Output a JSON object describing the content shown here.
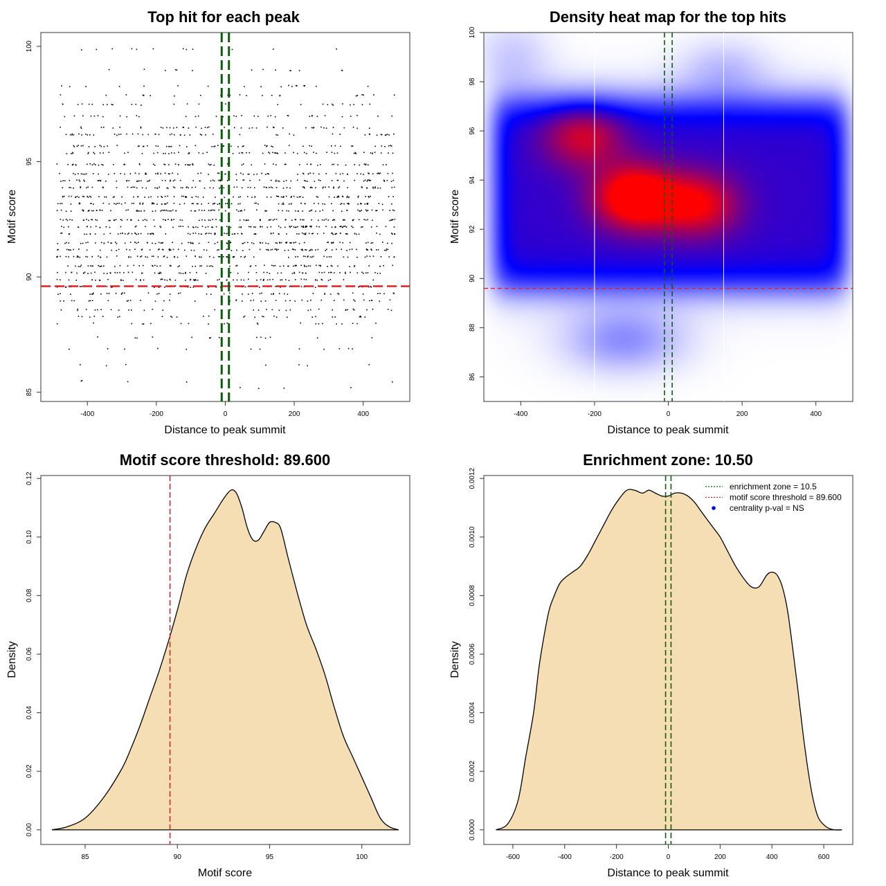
{
  "chart_data": [
    {
      "id": "top-hits",
      "type": "scatter",
      "title": "Top hit for each peak",
      "xlabel": "Distance to peak summit",
      "ylabel": "Motif score",
      "xlim": [
        -535,
        535
      ],
      "ylim": [
        84.6,
        100.6
      ],
      "xticks": [
        -400,
        -200,
        0,
        200,
        400
      ],
      "yticks": [
        85,
        90,
        95,
        100
      ],
      "score_levels": [
        85.2,
        85.5,
        86.2,
        86.9,
        87.4,
        88.0,
        88.3,
        88.6,
        89.0,
        89.3,
        89.6,
        89.9,
        90.2,
        90.5,
        90.9,
        91.2,
        91.5,
        91.9,
        92.2,
        92.5,
        92.9,
        93.2,
        93.5,
        93.9,
        94.2,
        94.5,
        94.9,
        95.4,
        95.7,
        96.2,
        96.5,
        97.0,
        97.5,
        97.9,
        98.3,
        99.0,
        99.9
      ],
      "level_weights": [
        3,
        4,
        6,
        10,
        12,
        18,
        24,
        30,
        36,
        42,
        48,
        56,
        62,
        66,
        70,
        74,
        78,
        80,
        82,
        82,
        80,
        78,
        76,
        72,
        68,
        62,
        58,
        54,
        48,
        44,
        38,
        30,
        24,
        20,
        16,
        12,
        10
      ],
      "n_points": 2000,
      "point_color": "#000000",
      "hlines": [
        {
          "y": 89.6,
          "color": "#e02020",
          "style": "dashed"
        }
      ],
      "vlines": [
        {
          "x": -10.5,
          "color": "#006400",
          "style": "dashed"
        },
        {
          "x": 10.5,
          "color": "#006400",
          "style": "dashed"
        }
      ]
    },
    {
      "id": "heatmap",
      "type": "heatmap",
      "title": "Density heat map for the top hits",
      "xlabel": "Distance to peak summit",
      "ylabel": "Motif score",
      "xlim": [
        -500,
        500
      ],
      "ylim": [
        85,
        100
      ],
      "xticks": [
        -400,
        -200,
        0,
        200,
        400
      ],
      "yticks": [
        86,
        88,
        90,
        92,
        94,
        96,
        98,
        100
      ],
      "hotspots": [
        {
          "x": -90,
          "y": 93.3,
          "intensity": 1.0
        },
        {
          "x": 80,
          "y": 93.0,
          "intensity": 0.7
        },
        {
          "x": -230,
          "y": 95.8,
          "intensity": 0.6
        }
      ],
      "colors": {
        "low": "#ffffff",
        "mid": "#0000ff",
        "high": "#ff0000"
      },
      "hlines": [
        {
          "y": 89.6,
          "color": "#e02020",
          "style": "dashed"
        }
      ],
      "vlines": [
        {
          "x": -10.5,
          "color": "#006400",
          "style": "dashed"
        },
        {
          "x": 10.5,
          "color": "#006400",
          "style": "dashed"
        },
        {
          "x": -200,
          "color": "#ffffff",
          "style": "solid"
        },
        {
          "x": 150,
          "color": "#ffffff",
          "style": "solid"
        }
      ]
    },
    {
      "id": "score-density",
      "type": "area",
      "title": "Motif score threshold: 89.600",
      "xlabel": "Motif score",
      "ylabel": "Density",
      "xlim": [
        82.6,
        102.6
      ],
      "ylim": [
        -0.005,
        0.121
      ],
      "xticks": [
        85,
        90,
        95,
        100
      ],
      "yticks": [
        0.0,
        0.02,
        0.04,
        0.06,
        0.08,
        0.1,
        0.12
      ],
      "ytick_labels": [
        "0.00",
        "0.02",
        "0.04",
        "0.06",
        "0.08",
        "0.10",
        "0.12"
      ],
      "fill": "#f5deb3",
      "x": [
        83.2,
        84.0,
        85.0,
        86.0,
        87.0,
        87.5,
        88.0,
        88.5,
        89.0,
        89.5,
        90.0,
        90.5,
        91.0,
        91.5,
        92.0,
        92.5,
        92.9,
        93.2,
        93.5,
        93.8,
        94.1,
        94.4,
        94.7,
        95.0,
        95.3,
        95.6,
        96.0,
        96.5,
        97.0,
        97.5,
        98.0,
        98.5,
        99.0,
        99.5,
        100.0,
        100.5,
        101.0,
        101.5,
        102.0
      ],
      "y": [
        0.0,
        0.001,
        0.004,
        0.011,
        0.021,
        0.028,
        0.036,
        0.045,
        0.054,
        0.064,
        0.075,
        0.087,
        0.096,
        0.103,
        0.108,
        0.113,
        0.116,
        0.115,
        0.11,
        0.103,
        0.099,
        0.099,
        0.102,
        0.105,
        0.105,
        0.103,
        0.093,
        0.081,
        0.07,
        0.062,
        0.053,
        0.042,
        0.032,
        0.025,
        0.018,
        0.011,
        0.004,
        0.001,
        0.0
      ],
      "vlines": [
        {
          "x": 89.6,
          "color": "#e02020",
          "style": "dashed"
        }
      ]
    },
    {
      "id": "distance-density",
      "type": "area",
      "title": "Enrichment zone: 10.50",
      "xlabel": "Distance to peak summit",
      "ylabel": "Density",
      "xlim": [
        -712,
        712
      ],
      "ylim": [
        -5e-05,
        0.00121
      ],
      "xticks": [
        -600,
        -400,
        -200,
        0,
        200,
        400,
        600
      ],
      "yticks": [
        0.0,
        0.0002,
        0.0004,
        0.0006,
        0.0008,
        0.001,
        0.0012
      ],
      "ytick_labels": [
        "0.0000",
        "0.0002",
        "0.0004",
        "0.0006",
        "0.0008",
        "0.0010",
        "0.0012"
      ],
      "fill": "#f5deb3",
      "x": [
        -665,
        -620,
        -580,
        -550,
        -520,
        -500,
        -480,
        -460,
        -440,
        -420,
        -400,
        -370,
        -340,
        -310,
        -280,
        -250,
        -220,
        -190,
        -160,
        -130,
        -100,
        -75,
        -50,
        -25,
        0,
        25,
        50,
        75,
        100,
        125,
        150,
        175,
        200,
        230,
        260,
        290,
        320,
        350,
        380,
        400,
        420,
        440,
        460,
        480,
        500,
        520,
        540,
        560,
        580,
        610,
        640,
        670
      ],
      "y": [
        0.0,
        2e-05,
        0.0001,
        0.00025,
        0.0004,
        0.00055,
        0.00066,
        0.00075,
        0.0008,
        0.00084,
        0.00086,
        0.00088,
        0.0009,
        0.00094,
        0.00099,
        0.00104,
        0.00109,
        0.00113,
        0.00116,
        0.00116,
        0.00115,
        0.00116,
        0.00115,
        0.00114,
        0.00114,
        0.00115,
        0.00115,
        0.00114,
        0.00112,
        0.00109,
        0.00106,
        0.00103,
        0.001,
        0.00095,
        0.0009,
        0.00086,
        0.00083,
        0.00083,
        0.00087,
        0.00088,
        0.00087,
        0.00083,
        0.00075,
        0.00062,
        0.00048,
        0.00033,
        0.0002,
        0.0001,
        4e-05,
        1e-05,
        0.0,
        0.0
      ],
      "vlines": [
        {
          "x": -10.5,
          "color": "#006400",
          "style": "dashed"
        },
        {
          "x": 10.5,
          "color": "#006400",
          "style": "dashed"
        }
      ],
      "legend": {
        "placement": "top-right",
        "entries": [
          {
            "label": "enrichment zone = 10.5",
            "color": "#006400",
            "style": "dotted"
          },
          {
            "label": "motif score threshold = 89.600",
            "color": "#e02020",
            "style": "dotted"
          },
          {
            "label": "centrality p-val = NS",
            "color": "#0000ff",
            "style": "point"
          }
        ]
      }
    }
  ]
}
